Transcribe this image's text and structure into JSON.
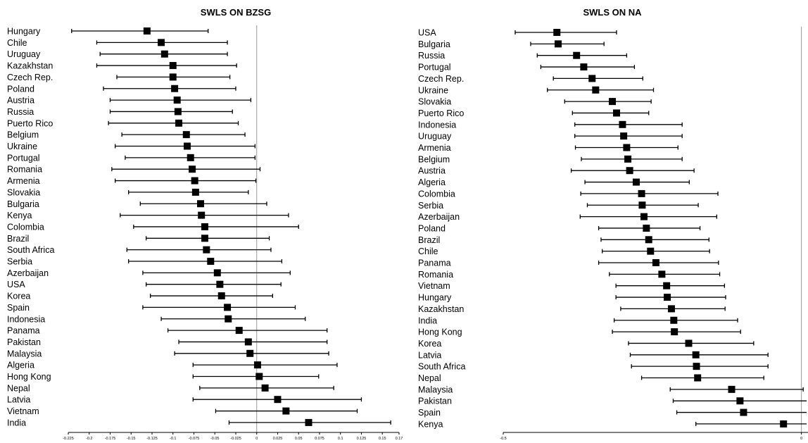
{
  "chart_data": [
    {
      "type": "forest",
      "title": "SWLS ON BZSG",
      "xlim": [
        -0.225,
        0.17
      ],
      "x_ticks": [
        "-0.225",
        "-0.2",
        "-0.175",
        "-0.15",
        "-0.125",
        "-0.1",
        "-0.075",
        "-0.05",
        "-0.025",
        "0",
        "0.025",
        "0.05",
        "0.075",
        "0.1",
        "0.125",
        "0.15",
        "0.17"
      ],
      "reference_line": 0,
      "points": [
        {
          "label": "Hungary",
          "estimate": -0.131,
          "lower": -0.221,
          "upper": -0.058
        },
        {
          "label": "Chile",
          "estimate": -0.114,
          "lower": -0.191,
          "upper": -0.035
        },
        {
          "label": "Uruguay",
          "estimate": -0.11,
          "lower": -0.187,
          "upper": -0.035
        },
        {
          "label": "Kazakhstan",
          "estimate": -0.1,
          "lower": -0.191,
          "upper": -0.024
        },
        {
          "label": "Czech Rep.",
          "estimate": -0.1,
          "lower": -0.167,
          "upper": -0.032
        },
        {
          "label": "Poland",
          "estimate": -0.098,
          "lower": -0.183,
          "upper": -0.025
        },
        {
          "label": "Austria",
          "estimate": -0.095,
          "lower": -0.175,
          "upper": -0.007
        },
        {
          "label": "Russia",
          "estimate": -0.094,
          "lower": -0.175,
          "upper": -0.029
        },
        {
          "label": "Puerto Rico",
          "estimate": -0.093,
          "lower": -0.177,
          "upper": -0.022
        },
        {
          "label": "Belgium",
          "estimate": -0.084,
          "lower": -0.161,
          "upper": -0.014
        },
        {
          "label": "Ukraine",
          "estimate": -0.083,
          "lower": -0.169,
          "upper": -0.002
        },
        {
          "label": "Portugal",
          "estimate": -0.079,
          "lower": -0.157,
          "upper": -0.002
        },
        {
          "label": "Romania",
          "estimate": -0.077,
          "lower": -0.173,
          "upper": 0.004
        },
        {
          "label": "Armenia",
          "estimate": -0.074,
          "lower": -0.169,
          "upper": -0.001
        },
        {
          "label": "Slovakia",
          "estimate": -0.073,
          "lower": -0.153,
          "upper": -0.01
        },
        {
          "label": "Bulgaria",
          "estimate": -0.067,
          "lower": -0.139,
          "upper": 0.012
        },
        {
          "label": "Kenya",
          "estimate": -0.066,
          "lower": -0.163,
          "upper": 0.038
        },
        {
          "label": "Colombia",
          "estimate": -0.062,
          "lower": -0.147,
          "upper": 0.05
        },
        {
          "label": "Brazil",
          "estimate": -0.062,
          "lower": -0.132,
          "upper": 0.015
        },
        {
          "label": "South Africa",
          "estimate": -0.06,
          "lower": -0.155,
          "upper": 0.017
        },
        {
          "label": "Serbia",
          "estimate": -0.055,
          "lower": -0.153,
          "upper": 0.03
        },
        {
          "label": "Azerbaijan",
          "estimate": -0.047,
          "lower": -0.136,
          "upper": 0.04
        },
        {
          "label": "USA",
          "estimate": -0.044,
          "lower": -0.132,
          "upper": 0.029
        },
        {
          "label": "Korea",
          "estimate": -0.042,
          "lower": -0.127,
          "upper": 0.019
        },
        {
          "label": "Spain",
          "estimate": -0.035,
          "lower": -0.136,
          "upper": 0.046
        },
        {
          "label": "Indonesia",
          "estimate": -0.034,
          "lower": -0.114,
          "upper": 0.058
        },
        {
          "label": "Panama",
          "estimate": -0.021,
          "lower": -0.106,
          "upper": 0.084
        },
        {
          "label": "Pakistan",
          "estimate": -0.01,
          "lower": -0.093,
          "upper": 0.084
        },
        {
          "label": "Malaysia",
          "estimate": -0.008,
          "lower": -0.098,
          "upper": 0.086
        },
        {
          "label": "Algeria",
          "estimate": 0.001,
          "lower": -0.076,
          "upper": 0.096
        },
        {
          "label": "Hong Kong",
          "estimate": 0.003,
          "lower": -0.076,
          "upper": 0.074
        },
        {
          "label": "Nepal",
          "estimate": 0.01,
          "lower": -0.068,
          "upper": 0.092
        },
        {
          "label": "Latvia",
          "estimate": 0.025,
          "lower": -0.076,
          "upper": 0.125
        },
        {
          "label": "Vietnam",
          "estimate": 0.035,
          "lower": -0.049,
          "upper": 0.12
        },
        {
          "label": "India",
          "estimate": 0.062,
          "lower": -0.033,
          "upper": 0.16
        }
      ]
    },
    {
      "type": "forest",
      "title": "SWLS ON NA",
      "xlim": [
        -0.5,
        0.05
      ],
      "x_ticks": [
        "-0.5",
        "0"
      ],
      "reference_line": 0,
      "points": [
        {
          "label": "USA",
          "estimate": -0.41,
          "lower": -0.48,
          "upper": -0.31
        },
        {
          "label": "Bulgaria",
          "estimate": -0.408,
          "lower": -0.454,
          "upper": -0.331
        },
        {
          "label": "Russia",
          "estimate": -0.377,
          "lower": -0.443,
          "upper": -0.293
        },
        {
          "label": "Portugal",
          "estimate": -0.365,
          "lower": -0.437,
          "upper": -0.28
        },
        {
          "label": "Czech Rep.",
          "estimate": -0.351,
          "lower": -0.416,
          "upper": -0.266
        },
        {
          "label": "Ukraine",
          "estimate": -0.345,
          "lower": -0.426,
          "upper": -0.248
        },
        {
          "label": "Slovakia",
          "estimate": -0.317,
          "lower": -0.397,
          "upper": -0.252
        },
        {
          "label": "Puerto Rico",
          "estimate": -0.31,
          "lower": -0.384,
          "upper": -0.256
        },
        {
          "label": "Indonesia",
          "estimate": -0.3,
          "lower": -0.38,
          "upper": -0.2
        },
        {
          "label": "Uruguay",
          "estimate": -0.298,
          "lower": -0.38,
          "upper": -0.2
        },
        {
          "label": "Armenia",
          "estimate": -0.293,
          "lower": -0.379,
          "upper": -0.207
        },
        {
          "label": "Belgium",
          "estimate": -0.291,
          "lower": -0.369,
          "upper": -0.2
        },
        {
          "label": "Austria",
          "estimate": -0.288,
          "lower": -0.386,
          "upper": -0.18
        },
        {
          "label": "Algeria",
          "estimate": -0.277,
          "lower": -0.363,
          "upper": -0.188
        },
        {
          "label": "Colombia",
          "estimate": -0.268,
          "lower": -0.37,
          "upper": -0.14
        },
        {
          "label": "Serbia",
          "estimate": -0.267,
          "lower": -0.359,
          "upper": -0.173
        },
        {
          "label": "Azerbaijan",
          "estimate": -0.264,
          "lower": -0.371,
          "upper": -0.142
        },
        {
          "label": "Poland",
          "estimate": -0.26,
          "lower": -0.34,
          "upper": -0.17
        },
        {
          "label": "Brazil",
          "estimate": -0.256,
          "lower": -0.336,
          "upper": -0.155
        },
        {
          "label": "Chile",
          "estimate": -0.253,
          "lower": -0.334,
          "upper": -0.154
        },
        {
          "label": "Panama",
          "estimate": -0.244,
          "lower": -0.34,
          "upper": -0.139
        },
        {
          "label": "Romania",
          "estimate": -0.234,
          "lower": -0.322,
          "upper": -0.137
        },
        {
          "label": "Vietnam",
          "estimate": -0.226,
          "lower": -0.311,
          "upper": -0.129
        },
        {
          "label": "Hungary",
          "estimate": -0.225,
          "lower": -0.311,
          "upper": -0.127
        },
        {
          "label": "Kazakhstan",
          "estimate": -0.218,
          "lower": -0.303,
          "upper": -0.128
        },
        {
          "label": "India",
          "estimate": -0.214,
          "lower": -0.314,
          "upper": -0.107
        },
        {
          "label": "Hong Kong",
          "estimate": -0.213,
          "lower": -0.317,
          "upper": -0.102
        },
        {
          "label": "Korea",
          "estimate": -0.189,
          "lower": -0.29,
          "upper": -0.08
        },
        {
          "label": "Latvia",
          "estimate": -0.177,
          "lower": -0.287,
          "upper": -0.056
        },
        {
          "label": "South Africa",
          "estimate": -0.176,
          "lower": -0.285,
          "upper": -0.056
        },
        {
          "label": "Nepal",
          "estimate": -0.174,
          "lower": -0.268,
          "upper": -0.063
        },
        {
          "label": "Malaysia",
          "estimate": -0.117,
          "lower": -0.22,
          "upper": 0.003
        },
        {
          "label": "Pakistan",
          "estimate": -0.103,
          "lower": -0.215,
          "upper": 0.018
        },
        {
          "label": "Spain",
          "estimate": -0.097,
          "lower": -0.209,
          "upper": 0.023
        },
        {
          "label": "Kenya",
          "estimate": -0.03,
          "lower": -0.177,
          "upper": 0.13
        }
      ]
    }
  ]
}
